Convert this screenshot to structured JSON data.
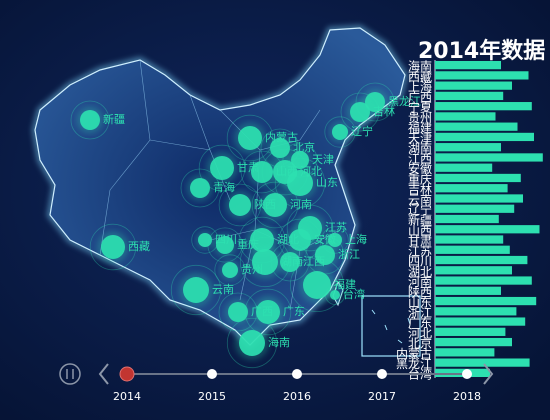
{
  "title": "2014年数据",
  "map": {
    "labels": [
      "新疆",
      "西藏",
      "青海",
      "甘肃",
      "内蒙古",
      "黑龙江",
      "吉林",
      "辽宁",
      "北京",
      "天津",
      "河北",
      "山西",
      "山东",
      "陕西",
      "河南",
      "江苏",
      "上海",
      "安徽",
      "湖北",
      "重庆",
      "四川",
      "浙江",
      "湖南",
      "江西",
      "福建",
      "台湾",
      "贵州",
      "云南",
      "广西",
      "广东",
      "海南"
    ],
    "values": [
      10,
      12,
      10,
      12,
      12,
      10,
      10,
      8,
      10,
      9,
      12,
      11,
      13,
      11,
      12,
      12,
      7,
      11,
      12,
      9,
      7,
      10,
      13,
      10,
      14,
      5,
      8,
      13,
      10,
      12,
      13
    ],
    "color": "#2de0b0"
  },
  "bars": {
    "categories": [
      "海南",
      "西藏",
      "上海",
      "广西",
      "宁夏",
      "贵州",
      "福建",
      "天津",
      "湖南",
      "江西",
      "安徽",
      "重庆",
      "吉林",
      "云南",
      "辽宁",
      "新疆",
      "山西",
      "甘肃",
      "江苏",
      "四川",
      "湖北",
      "河南",
      "陕西",
      "山东",
      "浙江",
      "广东",
      "河北",
      "北京",
      "内蒙古",
      "黑龙江",
      "台湾"
    ],
    "values": [
      60,
      85,
      70,
      62,
      88,
      55,
      75,
      90,
      60,
      98,
      52,
      78,
      66,
      80,
      72,
      58,
      95,
      62,
      68,
      84,
      70,
      88,
      60,
      92,
      74,
      82,
      64,
      70,
      54,
      86,
      50
    ],
    "color": "#2de0b0"
  },
  "timeline": {
    "years": [
      "2014",
      "2015",
      "2016",
      "2017",
      "2018"
    ],
    "current": 0
  }
}
